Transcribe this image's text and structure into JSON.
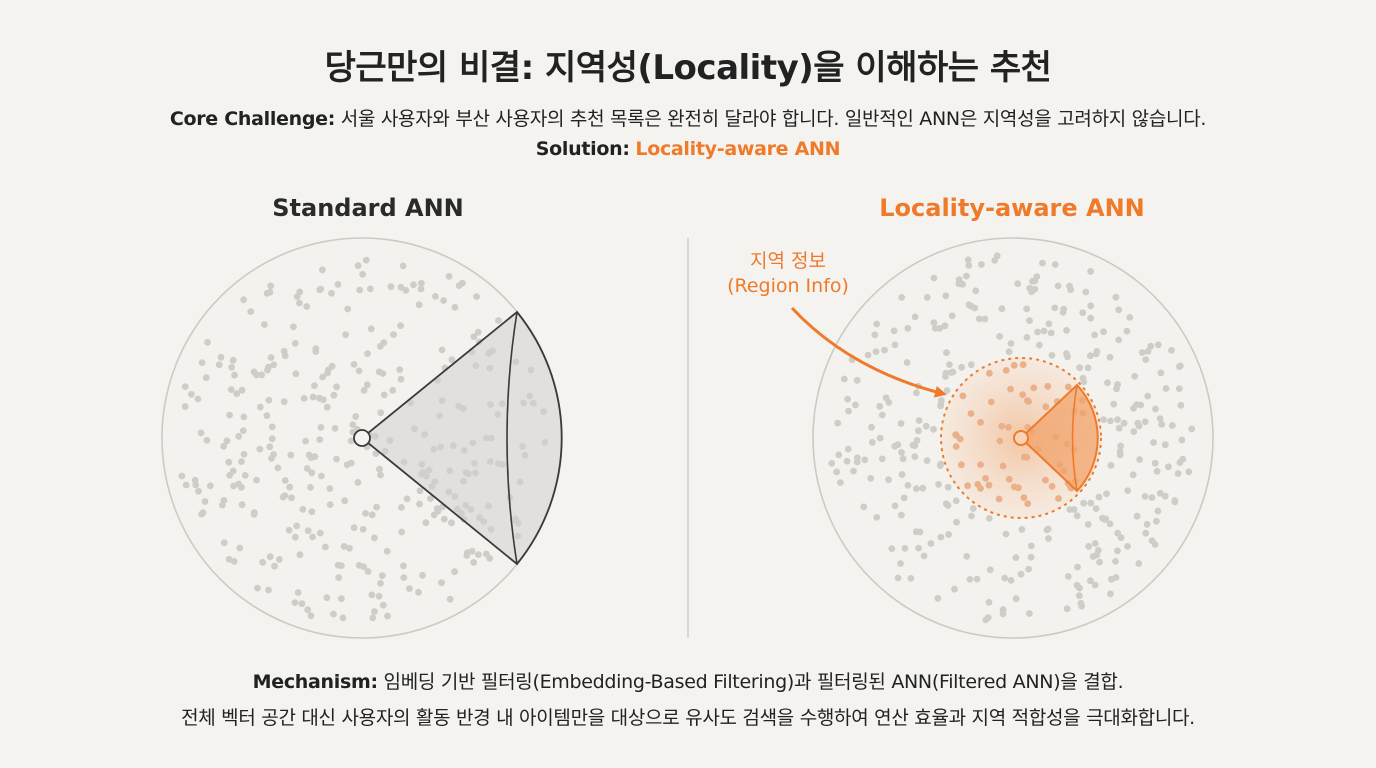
{
  "title": "당근만의 비결: 지역성(Locality)을 이해하는 추천",
  "challenge": {
    "label": "Core Challenge:",
    "text": " 서울 사용자와 부산 사용자의 추천 목록은 완전히 달라야 합니다. 일반적인 ANN은 지역성을 고려하지 않습니다."
  },
  "solution": {
    "label": "Solution:",
    "value": "Locality-aware ANN"
  },
  "panels": {
    "left_title": "Standard ANN",
    "right_title": "Locality-aware ANN"
  },
  "region": {
    "label_line1": "지역 정보",
    "label_line2": "(Region Info)"
  },
  "mechanism": {
    "label": "Mechanism:",
    "text1": " 임베딩 기반 필터링(Embedding-Based Filtering)과 필터링된 ANN(Filtered ANN)을 결합.",
    "text2": "전체 벡터 공간 대신 사용자의 활동 반경 내 아이템만을 대상으로 유사도 검색을 수행하여 연산 효율과 지역 적합성을 극대화합니다."
  },
  "colors": {
    "accent": "#ee7a2a",
    "background": "#f4f3ef",
    "dot": "#cfcdc8",
    "circle_stroke": "#cccac5",
    "cone_stroke": "#3a3a3a"
  }
}
